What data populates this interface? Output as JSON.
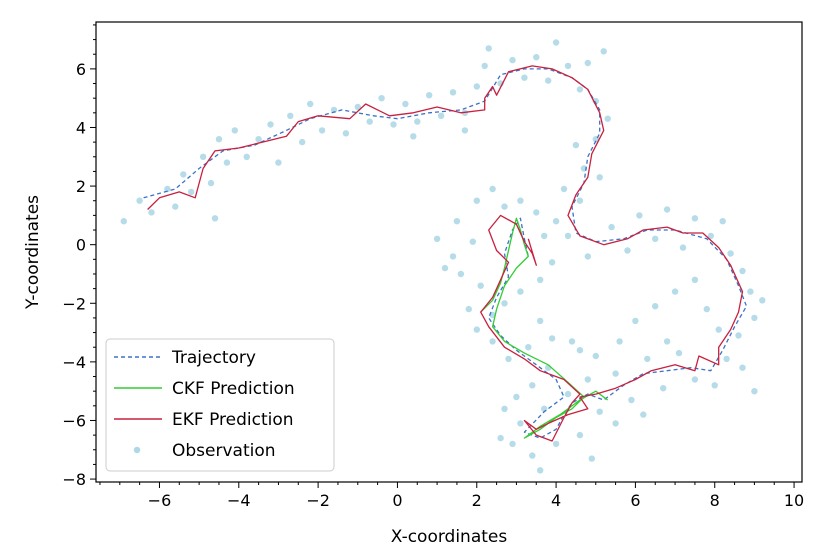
{
  "chart_data": {
    "type": "line",
    "title": "",
    "xlabel": "X-coordinates",
    "ylabel": "Y-coordinates",
    "xlim": [
      -7.6,
      10.2
    ],
    "ylim": [
      -8.1,
      7.6
    ],
    "grid": false,
    "legend_position": "lower-left",
    "x_ticks": [
      -6,
      -4,
      -2,
      0,
      2,
      4,
      6,
      8,
      10
    ],
    "y_ticks": [
      -8,
      -6,
      -4,
      -2,
      0,
      2,
      4,
      6
    ],
    "series": [
      {
        "name": "Trajectory",
        "style": "dashed",
        "color": "#3a72c6",
        "points": [
          [
            -6.4,
            1.6
          ],
          [
            -5.6,
            1.9
          ],
          [
            -5.0,
            2.6
          ],
          [
            -4.4,
            3.2
          ],
          [
            -3.6,
            3.4
          ],
          [
            -2.8,
            3.9
          ],
          [
            -2.2,
            4.3
          ],
          [
            -1.4,
            4.6
          ],
          [
            -0.6,
            4.4
          ],
          [
            0.0,
            4.3
          ],
          [
            0.8,
            4.5
          ],
          [
            1.6,
            4.6
          ],
          [
            2.2,
            4.9
          ],
          [
            2.6,
            5.8
          ],
          [
            3.2,
            6.0
          ],
          [
            3.8,
            6.0
          ],
          [
            4.4,
            5.7
          ],
          [
            4.8,
            5.3
          ],
          [
            5.1,
            4.6
          ],
          [
            5.1,
            3.8
          ],
          [
            4.8,
            3.0
          ],
          [
            4.7,
            2.1
          ],
          [
            4.4,
            1.3
          ],
          [
            4.5,
            0.4
          ],
          [
            5.0,
            0.1
          ],
          [
            5.7,
            0.2
          ],
          [
            6.3,
            0.5
          ],
          [
            7.0,
            0.5
          ],
          [
            7.8,
            0.2
          ],
          [
            8.3,
            -0.5
          ],
          [
            8.6,
            -1.4
          ],
          [
            8.8,
            -2.1
          ],
          [
            8.5,
            -2.8
          ],
          [
            8.2,
            -3.6
          ],
          [
            7.9,
            -4.3
          ],
          [
            7.4,
            -4.2
          ],
          [
            6.8,
            -4.3
          ],
          [
            6.2,
            -4.4
          ],
          [
            5.7,
            -4.8
          ],
          [
            5.2,
            -5.3
          ],
          [
            4.8,
            -5.1
          ],
          [
            4.4,
            -5.4
          ],
          [
            4.2,
            -5.8
          ],
          [
            4.0,
            -6.3
          ],
          [
            3.6,
            -6.6
          ],
          [
            3.2,
            -6.4
          ],
          [
            3.7,
            -5.7
          ],
          [
            4.2,
            -5.2
          ],
          [
            4.0,
            -4.6
          ],
          [
            3.5,
            -4.1
          ],
          [
            3.0,
            -3.6
          ],
          [
            2.6,
            -3.1
          ],
          [
            2.3,
            -2.5
          ],
          [
            2.5,
            -1.8
          ],
          [
            2.8,
            -1.1
          ],
          [
            2.7,
            -0.3
          ],
          [
            2.9,
            0.5
          ],
          [
            3.1,
            0.9
          ],
          [
            3.2,
            0.2
          ],
          [
            3.3,
            -0.4
          ]
        ]
      },
      {
        "name": "CKF Prediction",
        "style": "solid",
        "color": "#33cc33",
        "points": [
          [
            2.1,
            -2.3
          ],
          [
            2.4,
            -1.9
          ],
          [
            2.6,
            -1.3
          ],
          [
            2.7,
            -0.8
          ],
          [
            2.8,
            -0.2
          ],
          [
            2.9,
            0.4
          ],
          [
            3.0,
            0.9
          ],
          [
            3.1,
            0.5
          ],
          [
            3.2,
            0.0
          ],
          [
            3.3,
            -0.4
          ],
          [
            3.0,
            -0.8
          ],
          [
            2.7,
            -1.4
          ],
          [
            2.5,
            -2.2
          ],
          [
            2.4,
            -2.8
          ],
          [
            2.7,
            -3.3
          ],
          [
            3.2,
            -3.7
          ],
          [
            3.8,
            -4.1
          ],
          [
            4.3,
            -4.7
          ],
          [
            4.7,
            -5.2
          ],
          [
            4.4,
            -5.6
          ],
          [
            4.0,
            -5.9
          ],
          [
            3.6,
            -6.3
          ],
          [
            3.2,
            -6.6
          ],
          [
            3.6,
            -6.2
          ],
          [
            4.1,
            -5.8
          ],
          [
            4.6,
            -5.3
          ],
          [
            5.0,
            -5.0
          ],
          [
            5.3,
            -5.3
          ]
        ]
      },
      {
        "name": "EKF Prediction",
        "style": "solid",
        "color": "#c8203e",
        "points": [
          [
            -6.3,
            1.2
          ],
          [
            -6.0,
            1.6
          ],
          [
            -5.5,
            1.8
          ],
          [
            -5.1,
            1.6
          ],
          [
            -4.9,
            2.6
          ],
          [
            -4.6,
            3.2
          ],
          [
            -4.0,
            3.3
          ],
          [
            -3.4,
            3.5
          ],
          [
            -2.8,
            3.7
          ],
          [
            -2.5,
            4.2
          ],
          [
            -2.0,
            4.4
          ],
          [
            -1.2,
            4.3
          ],
          [
            -0.8,
            4.8
          ],
          [
            -0.2,
            4.4
          ],
          [
            0.4,
            4.5
          ],
          [
            1.0,
            4.7
          ],
          [
            1.6,
            4.5
          ],
          [
            2.2,
            4.6
          ],
          [
            2.2,
            5.0
          ],
          [
            2.4,
            5.4
          ],
          [
            2.5,
            5.1
          ],
          [
            2.8,
            5.9
          ],
          [
            3.4,
            6.1
          ],
          [
            3.9,
            6.0
          ],
          [
            4.4,
            5.7
          ],
          [
            4.8,
            5.3
          ],
          [
            5.1,
            4.5
          ],
          [
            5.2,
            3.9
          ],
          [
            4.9,
            3.1
          ],
          [
            4.8,
            2.3
          ],
          [
            4.5,
            1.7
          ],
          [
            4.3,
            1.0
          ],
          [
            4.6,
            0.3
          ],
          [
            5.2,
            0.0
          ],
          [
            5.8,
            0.2
          ],
          [
            6.2,
            0.5
          ],
          [
            6.8,
            0.6
          ],
          [
            7.2,
            0.4
          ],
          [
            7.7,
            0.4
          ],
          [
            8.1,
            -0.1
          ],
          [
            8.4,
            -0.7
          ],
          [
            8.7,
            -1.6
          ],
          [
            8.6,
            -2.3
          ],
          [
            8.4,
            -2.9
          ],
          [
            8.1,
            -3.5
          ],
          [
            8.1,
            -4.1
          ],
          [
            7.6,
            -3.8
          ],
          [
            7.5,
            -4.3
          ],
          [
            7.0,
            -4.1
          ],
          [
            6.4,
            -4.3
          ],
          [
            6.0,
            -4.6
          ],
          [
            5.5,
            -4.9
          ],
          [
            5.0,
            -5.1
          ],
          [
            4.6,
            -5.2
          ],
          [
            4.8,
            -5.6
          ],
          [
            4.3,
            -5.8
          ],
          [
            3.8,
            -6.1
          ],
          [
            3.5,
            -6.3
          ],
          [
            3.2,
            -6.0
          ],
          [
            3.5,
            -6.5
          ],
          [
            3.9,
            -6.7
          ],
          [
            4.2,
            -5.9
          ],
          [
            4.4,
            -5.4
          ],
          [
            4.6,
            -5.1
          ],
          [
            4.2,
            -4.6
          ],
          [
            3.6,
            -4.3
          ],
          [
            3.2,
            -3.9
          ],
          [
            2.7,
            -3.5
          ],
          [
            2.3,
            -2.8
          ],
          [
            2.1,
            -2.3
          ],
          [
            2.4,
            -1.8
          ],
          [
            2.6,
            -1.2
          ],
          [
            2.8,
            -0.6
          ],
          [
            2.5,
            -0.2
          ],
          [
            2.3,
            0.5
          ],
          [
            2.6,
            1.0
          ],
          [
            3.0,
            0.7
          ],
          [
            3.2,
            0.1
          ],
          [
            3.4,
            -0.3
          ],
          [
            3.5,
            -0.7
          ],
          [
            3.3,
            0.2
          ]
        ]
      },
      {
        "name": "Observation",
        "style": "markers",
        "color": "#add8e6",
        "points": [
          [
            -6.9,
            0.8
          ],
          [
            -6.5,
            1.5
          ],
          [
            -6.2,
            1.1
          ],
          [
            -5.8,
            1.9
          ],
          [
            -5.6,
            1.3
          ],
          [
            -5.4,
            2.4
          ],
          [
            -5.2,
            1.8
          ],
          [
            -4.9,
            3.0
          ],
          [
            -4.7,
            2.1
          ],
          [
            -4.5,
            3.6
          ],
          [
            -4.3,
            2.8
          ],
          [
            -4.1,
            3.9
          ],
          [
            -3.8,
            3.0
          ],
          [
            -3.5,
            3.6
          ],
          [
            -3.2,
            4.1
          ],
          [
            -3.0,
            2.8
          ],
          [
            -2.7,
            4.4
          ],
          [
            -2.4,
            3.5
          ],
          [
            -2.2,
            4.8
          ],
          [
            -1.9,
            3.9
          ],
          [
            -1.6,
            4.6
          ],
          [
            -1.3,
            3.8
          ],
          [
            -1.0,
            4.7
          ],
          [
            -0.7,
            4.2
          ],
          [
            -0.4,
            5.0
          ],
          [
            -0.1,
            4.1
          ],
          [
            0.2,
            4.8
          ],
          [
            0.5,
            4.2
          ],
          [
            0.8,
            5.1
          ],
          [
            1.1,
            4.4
          ],
          [
            1.4,
            5.2
          ],
          [
            1.7,
            4.5
          ],
          [
            2.0,
            5.4
          ],
          [
            2.2,
            6.1
          ],
          [
            2.3,
            6.7
          ],
          [
            2.6,
            5.5
          ],
          [
            2.9,
            6.3
          ],
          [
            3.2,
            5.7
          ],
          [
            3.5,
            6.4
          ],
          [
            3.8,
            5.6
          ],
          [
            4.0,
            6.9
          ],
          [
            4.3,
            6.1
          ],
          [
            4.6,
            5.3
          ],
          [
            4.8,
            6.2
          ],
          [
            5.0,
            4.9
          ],
          [
            5.2,
            6.6
          ],
          [
            5.3,
            4.3
          ],
          [
            5.0,
            3.6
          ],
          [
            4.5,
            3.4
          ],
          [
            4.7,
            2.6
          ],
          [
            5.1,
            2.3
          ],
          [
            4.2,
            1.9
          ],
          [
            4.6,
            1.5
          ],
          [
            4.0,
            0.8
          ],
          [
            4.3,
            0.3
          ],
          [
            4.8,
            -0.4
          ],
          [
            5.4,
            0.6
          ],
          [
            5.8,
            -0.2
          ],
          [
            6.1,
            1.0
          ],
          [
            6.5,
            0.2
          ],
          [
            6.8,
            1.2
          ],
          [
            7.2,
            -0.1
          ],
          [
            7.5,
            0.9
          ],
          [
            7.9,
            0.3
          ],
          [
            8.2,
            0.8
          ],
          [
            8.4,
            -0.3
          ],
          [
            8.7,
            -0.9
          ],
          [
            8.9,
            -1.6
          ],
          [
            9.2,
            -1.9
          ],
          [
            9.0,
            -2.5
          ],
          [
            8.6,
            -3.1
          ],
          [
            8.3,
            -3.9
          ],
          [
            8.7,
            -4.2
          ],
          [
            8.0,
            -4.8
          ],
          [
            7.5,
            -4.6
          ],
          [
            7.1,
            -3.7
          ],
          [
            6.7,
            -4.9
          ],
          [
            6.3,
            -3.9
          ],
          [
            5.9,
            -5.3
          ],
          [
            5.5,
            -4.4
          ],
          [
            5.1,
            -5.7
          ],
          [
            4.8,
            -4.6
          ],
          [
            4.6,
            -6.5
          ],
          [
            4.3,
            -5.1
          ],
          [
            4.0,
            -6.8
          ],
          [
            3.7,
            -5.6
          ],
          [
            3.4,
            -7.2
          ],
          [
            3.1,
            -6.1
          ],
          [
            2.9,
            -6.8
          ],
          [
            2.7,
            -5.6
          ],
          [
            3.0,
            -5.2
          ],
          [
            3.4,
            -4.8
          ],
          [
            3.8,
            -4.2
          ],
          [
            3.3,
            -3.5
          ],
          [
            2.8,
            -3.9
          ],
          [
            2.4,
            -3.3
          ],
          [
            2.0,
            -2.9
          ],
          [
            1.8,
            -2.2
          ],
          [
            2.1,
            -1.4
          ],
          [
            1.6,
            -1.0
          ],
          [
            1.4,
            -0.4
          ],
          [
            1.9,
            0.1
          ],
          [
            1.5,
            0.8
          ],
          [
            2.0,
            1.5
          ],
          [
            2.4,
            1.9
          ],
          [
            2.7,
            1.3
          ],
          [
            3.1,
            1.5
          ],
          [
            3.5,
            1.1
          ],
          [
            3.7,
            0.3
          ],
          [
            3.9,
            -0.6
          ],
          [
            3.6,
            -1.2
          ],
          [
            3.1,
            -1.6
          ],
          [
            2.7,
            -2.0
          ],
          [
            2.4,
            -2.4
          ],
          [
            1.2,
            -0.8
          ],
          [
            1.0,
            0.2
          ],
          [
            3.6,
            -2.6
          ],
          [
            4.4,
            -3.3
          ],
          [
            5.0,
            -3.8
          ],
          [
            5.6,
            -3.3
          ],
          [
            6.0,
            -2.6
          ],
          [
            6.5,
            -2.1
          ],
          [
            7.0,
            -1.6
          ],
          [
            7.5,
            -1.2
          ],
          [
            7.8,
            -2.2
          ],
          [
            8.1,
            -2.9
          ],
          [
            6.8,
            -3.3
          ],
          [
            6.2,
            -5.8
          ],
          [
            5.5,
            -6.1
          ],
          [
            4.9,
            -7.3
          ],
          [
            3.6,
            -7.7
          ],
          [
            2.6,
            -6.6
          ],
          [
            9.0,
            -5.0
          ],
          [
            4.6,
            -3.6
          ],
          [
            3.9,
            -3.2
          ],
          [
            -4.6,
            0.9
          ],
          [
            1.7,
            3.9
          ],
          [
            0.4,
            3.7
          ]
        ]
      }
    ]
  },
  "legend": {
    "items": [
      "Trajectory",
      "CKF Prediction",
      "EKF Prediction",
      "Observation"
    ]
  }
}
